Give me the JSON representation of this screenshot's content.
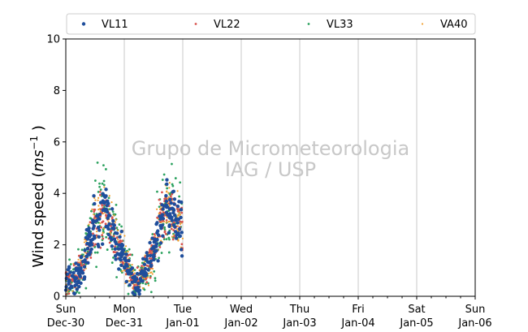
{
  "chart_data": {
    "type": "scatter",
    "title": "",
    "xlabel": "",
    "ylabel": "Wind speed (ms⁻¹ )",
    "ylim": [
      0,
      10
    ],
    "yticks": [
      "0",
      "2",
      "4",
      "6",
      "8",
      "10"
    ],
    "xlim_days": [
      "Dec-30",
      "Jan-06"
    ],
    "xticks": [
      {
        "day": "Sun",
        "date": "Dec-30"
      },
      {
        "day": "Mon",
        "date": "Dec-31"
      },
      {
        "day": "Tue",
        "date": "Jan-01"
      },
      {
        "day": "Wed",
        "date": "Jan-02"
      },
      {
        "day": "Thu",
        "date": "Jan-03"
      },
      {
        "day": "Fri",
        "date": "Jan-04"
      },
      {
        "day": "Sat",
        "date": "Jan-05"
      },
      {
        "day": "Sun",
        "date": "Jan-06"
      }
    ],
    "grid": "vertical",
    "legend_placement": "top",
    "watermark": [
      "Grupo de Micrometeorologia",
      "IAG / USP"
    ],
    "series": [
      {
        "name": "VL11",
        "color": "#1f4e9c",
        "marker": "circle-large"
      },
      {
        "name": "VL22",
        "color": "#d9534f",
        "marker": "circle-small"
      },
      {
        "name": "VL33",
        "color": "#2ca25f",
        "marker": "circle-small"
      },
      {
        "name": "VA40",
        "color": "#f0a030",
        "marker": "circle-tiny"
      }
    ],
    "trend": {
      "x_hours": [
        0,
        3,
        6,
        8,
        10,
        12,
        14,
        16,
        18,
        20,
        22,
        24,
        26,
        28,
        30,
        32,
        34,
        36,
        38,
        40,
        42,
        44,
        46,
        48
      ],
      "y_values": [
        0.5,
        0.7,
        1.0,
        1.5,
        2.3,
        2.9,
        3.0,
        3.3,
        2.9,
        2.3,
        1.8,
        1.5,
        1.0,
        0.6,
        0.6,
        0.9,
        1.2,
        1.7,
        2.6,
        3.2,
        3.6,
        3.3,
        2.9,
        2.5
      ]
    }
  }
}
